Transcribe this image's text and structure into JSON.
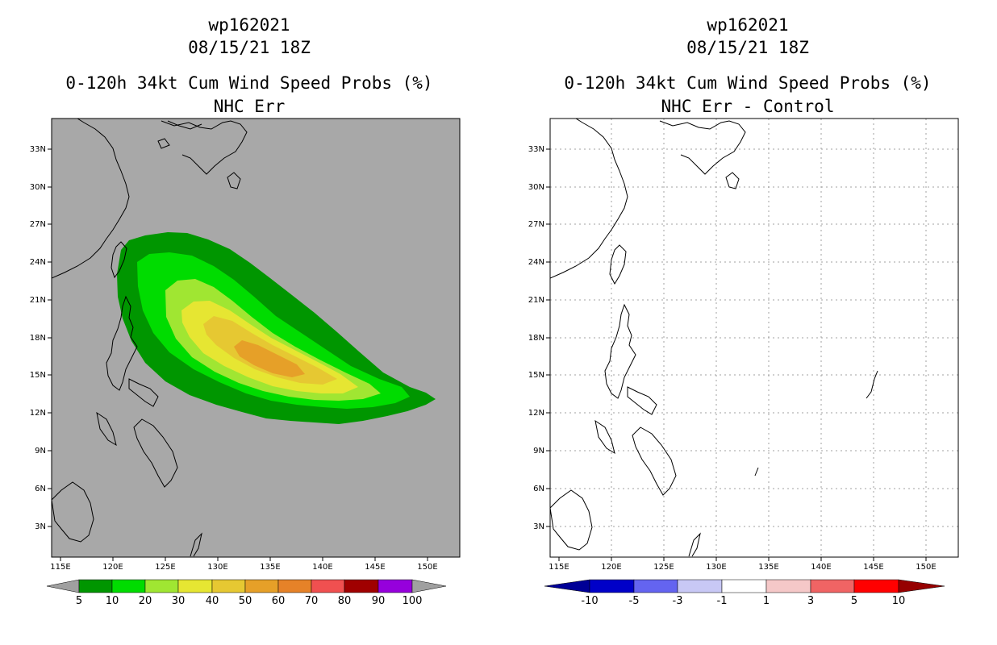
{
  "left": {
    "storm_id": "wp162021",
    "datetime": "08/15/21 18Z",
    "title": "0-120h 34kt Cum Wind Speed Probs (%)",
    "subtitle": "NHC Err",
    "lon_labels": [
      "115E",
      "120E",
      "125E",
      "130E",
      "135E",
      "140E",
      "145E",
      "150E"
    ],
    "lat_labels": [
      "3N",
      "6N",
      "9N",
      "12N",
      "15N",
      "18N",
      "21N",
      "24N",
      "27N",
      "30N",
      "33N"
    ],
    "colorbar": {
      "labels": [
        "5",
        "10",
        "20",
        "30",
        "40",
        "50",
        "60",
        "70",
        "80",
        "90",
        "100"
      ],
      "colors": [
        "#009600",
        "#00dc00",
        "#a0e632",
        "#e6e632",
        "#e6c832",
        "#e6a028",
        "#e68228",
        "#f05050",
        "#a00000",
        "#9600dc"
      ],
      "end_color": "#a0a0a0"
    },
    "background": "#a8a8a8"
  },
  "right": {
    "storm_id": "wp162021",
    "datetime": "08/15/21 18Z",
    "title": "0-120h 34kt Cum Wind Speed Probs (%)",
    "subtitle": "NHC Err - Control",
    "lon_labels": [
      "115E",
      "120E",
      "125E",
      "130E",
      "135E",
      "140E",
      "145E",
      "150E"
    ],
    "lat_labels": [
      "3N",
      "6N",
      "9N",
      "12N",
      "15N",
      "18N",
      "21N",
      "24N",
      "27N",
      "30N",
      "33N"
    ],
    "colorbar": {
      "labels": [
        "-10",
        "-5",
        "-3",
        "-1",
        "1",
        "3",
        "5",
        "10"
      ],
      "colors": [
        "#0000c8",
        "#6464f0",
        "#c8c8f5",
        "#ffffff",
        "#f5c8c8",
        "#f06464",
        "#ff0000"
      ],
      "low_color": "#000096",
      "high_color": "#960000"
    },
    "background": "#ffffff"
  }
}
